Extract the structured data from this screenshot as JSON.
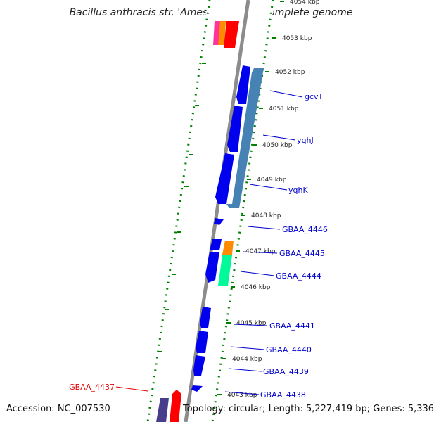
{
  "map": {
    "title": "Bacillus anthracis str. 'Ames Ancestor', complete genome",
    "accession": "Accession: NC_007530",
    "summary": "Topology: circular; Length: 5,227,419 bp; Genes: 5,336"
  },
  "ticks": [
    {
      "label": "4054 kbp",
      "faded": true
    },
    {
      "label": "4053 kbp"
    },
    {
      "label": "4052 kbp"
    },
    {
      "label": "4051 kbp"
    },
    {
      "label": "4050 kbp"
    },
    {
      "label": "4049 kbp"
    },
    {
      "label": "4048 kbp"
    },
    {
      "label": "4047 kbp"
    },
    {
      "label": "4046 kbp"
    },
    {
      "label": "4045 kbp"
    },
    {
      "label": "4044 kbp"
    },
    {
      "label": "4043 kbp"
    }
  ],
  "genes": [
    {
      "label": "gcvT",
      "color": "#0000cc"
    },
    {
      "label": "yqhJ",
      "color": "#0000cc"
    },
    {
      "label": "yqhK",
      "color": "#0000cc"
    },
    {
      "label": "GBAA_4446",
      "color": "#0000cc"
    },
    {
      "label": "GBAA_4445",
      "color": "#0000cc"
    },
    {
      "label": "GBAA_4444",
      "color": "#0000cc"
    },
    {
      "label": "GBAA_4441",
      "color": "#0000cc"
    },
    {
      "label": "GBAA_4440",
      "color": "#0000cc"
    },
    {
      "label": "GBAA_4439",
      "color": "#0000cc"
    },
    {
      "label": "GBAA_4438",
      "color": "#0000cc"
    },
    {
      "label": "GBAA_4437",
      "color": "#e00000"
    }
  ],
  "colors": {
    "backbone": "#8c8c8c",
    "cds_forward": "#0000ee",
    "cds_reverse": "#4682b4",
    "trna": "#ff8c00",
    "rrna": "#00fa9a",
    "pink": "#ff3399",
    "red": "#ff0000",
    "purple": "#483d8b",
    "gc_track": "#008000"
  }
}
